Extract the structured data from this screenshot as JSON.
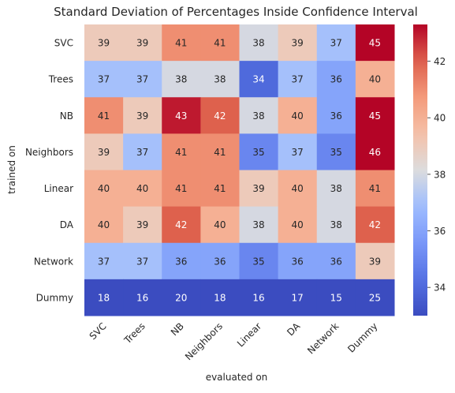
{
  "chart_data": {
    "type": "heatmap",
    "title": "Standard Deviation of Percentages Inside Confidence Interval",
    "xlabel": "evaluated on",
    "ylabel": "trained on",
    "x_categories": [
      "SVC",
      "Trees",
      "NB",
      "Neighbors",
      "Linear",
      "DA",
      "Network",
      "Dummy"
    ],
    "y_categories": [
      "SVC",
      "Trees",
      "NB",
      "Neighbors",
      "Linear",
      "DA",
      "Network",
      "Dummy"
    ],
    "values": [
      [
        39,
        39,
        41,
        41,
        38,
        39,
        37,
        45
      ],
      [
        37,
        37,
        38,
        38,
        34,
        37,
        36,
        40
      ],
      [
        41,
        39,
        43,
        42,
        38,
        40,
        36,
        45
      ],
      [
        39,
        37,
        41,
        41,
        35,
        37,
        35,
        46
      ],
      [
        40,
        40,
        41,
        41,
        39,
        40,
        38,
        41
      ],
      [
        40,
        39,
        42,
        40,
        38,
        40,
        38,
        42
      ],
      [
        37,
        37,
        36,
        36,
        35,
        36,
        36,
        39
      ],
      [
        18,
        16,
        20,
        18,
        16,
        17,
        15,
        25
      ]
    ],
    "colorscale": "coolwarm",
    "color_range": [
      33,
      43.3
    ],
    "colorbar_ticks": [
      34,
      36,
      38,
      40,
      42
    ]
  }
}
